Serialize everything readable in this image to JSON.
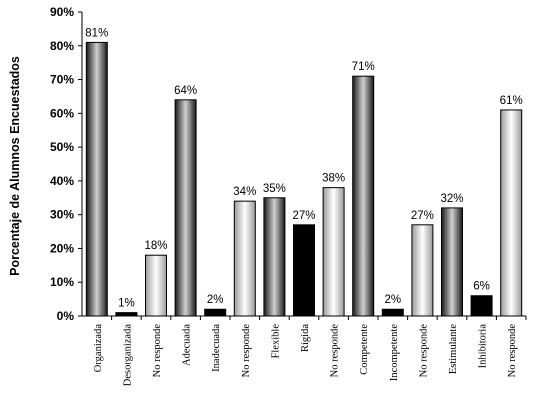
{
  "chart_data": {
    "type": "bar",
    "ylabel": "Porcentaje de Alumnos Encuestados",
    "xlabel": "",
    "ylim": [
      0,
      90
    ],
    "yticks": [
      "0%",
      "10%",
      "20%",
      "30%",
      "40%",
      "50%",
      "60%",
      "70%",
      "80%",
      "90%"
    ],
    "grid": false,
    "categories": [
      "Organizada",
      "Desorganizada",
      "No responde",
      "Adecuada",
      "Inadecuada",
      "No responde",
      "Flexible",
      "Rígida",
      "No responde",
      "Competente",
      "Incompetente",
      "No responde",
      "Estimulante",
      "Inhibitoria",
      "No responde"
    ],
    "values": [
      81,
      1,
      18,
      64,
      2,
      34,
      35,
      27,
      38,
      71,
      2,
      27,
      32,
      6,
      61
    ],
    "value_labels": [
      "81%",
      "1%",
      "18%",
      "64%",
      "2%",
      "34%",
      "35%",
      "27%",
      "38%",
      "71%",
      "2%",
      "27%",
      "32%",
      "6%",
      "61%"
    ],
    "bar_styles": [
      "dark",
      "black",
      "light",
      "dark",
      "black",
      "light",
      "dark",
      "black",
      "light",
      "dark",
      "black",
      "light",
      "dark",
      "black",
      "light"
    ],
    "colors": {
      "dark_edge": "#1a1a1a",
      "dark_mid": "#d0d0d0",
      "light_edge": "#9a9a9a",
      "light_mid": "#ffffff",
      "black": "#000000",
      "axis": "#000000"
    }
  }
}
